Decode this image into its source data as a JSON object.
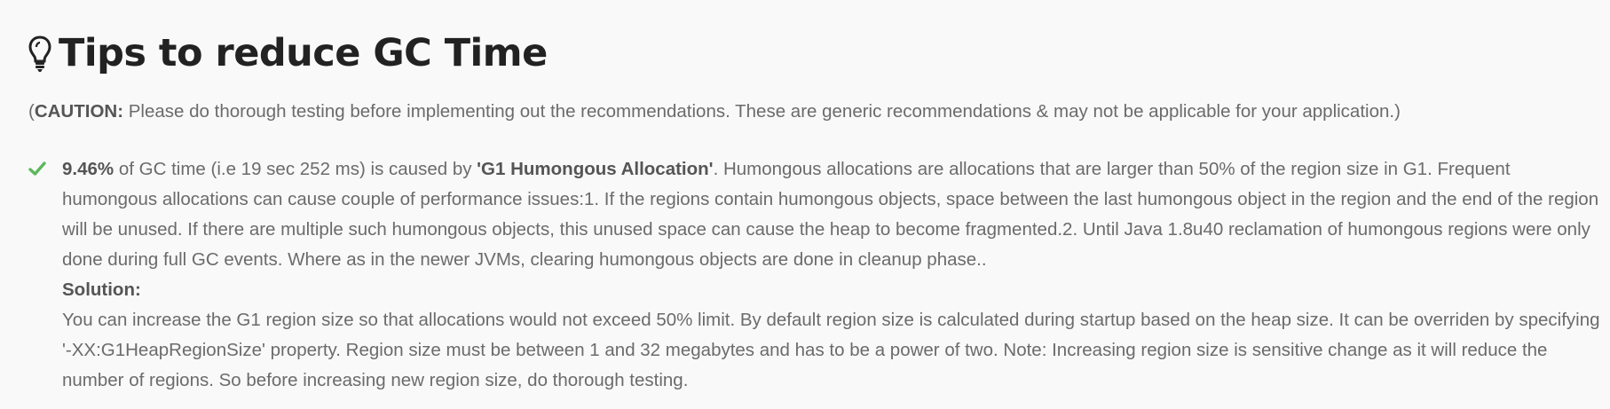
{
  "section": {
    "icon": "lightbulb-icon",
    "title": "Tips to reduce GC Time"
  },
  "caution": {
    "open_paren": "(",
    "label": "CAUTION:",
    "text": " Please do thorough testing before implementing out the recommendations. These are generic recommendations & may not be applicable for your application.)"
  },
  "tips": [
    {
      "icon": "check-icon",
      "percentage": "9.46%",
      "intro": " of GC time (i.e 19 sec 252 ms) is caused by ",
      "cause": "'G1 Humongous Allocation'",
      "description": ". Humongous allocations are allocations that are larger than 50% of the region size in G1. Frequent humongous allocations can cause couple of performance issues:1. If the regions contain humongous objects, space between the last humongous object in the region and the end of the region will be unused. If there are multiple such humongous objects, this unused space can cause the heap to become fragmented.2. Until Java 1.8u40 reclamation of humongous regions were only done during full GC events. Where as in the newer JVMs, clearing humongous objects are done in cleanup phase..",
      "solution_label": "Solution:",
      "solution_text": "You can increase the G1 region size so that allocations would not exceed 50% limit. By default region size is calculated during startup based on the heap size. It can be overriden by specifying '-XX:G1HeapRegionSize' property. Region size must be between 1 and 32 megabytes and has to be a power of two. Note: Increasing region size is sensitive change as it will reduce the number of regions. So before increasing new region size, do thorough testing."
    }
  ],
  "colors": {
    "check": "#5cb85c",
    "title": "#222222",
    "text": "#6b6b6b"
  }
}
